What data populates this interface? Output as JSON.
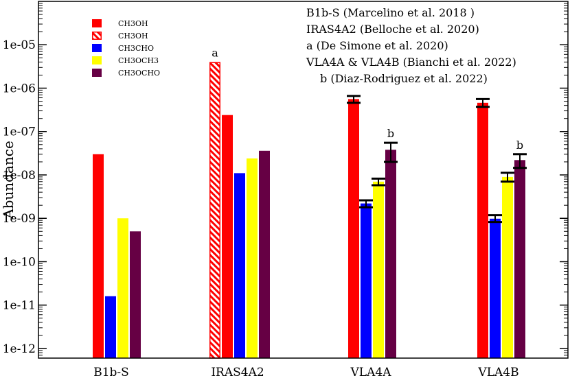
{
  "chart_data": {
    "type": "bar",
    "ylabel": "Abundance",
    "yscale": "log",
    "ylim": [
      6e-13,
      0.0001
    ],
    "yticks": [
      {
        "value": 1e-12,
        "label": "1e-12"
      },
      {
        "value": 1e-11,
        "label": "1e-11"
      },
      {
        "value": 1e-10,
        "label": "1e-10"
      },
      {
        "value": 1e-09,
        "label": "1e-09"
      },
      {
        "value": 1e-08,
        "label": "1e-08"
      },
      {
        "value": 1e-07,
        "label": "1e-07"
      },
      {
        "value": 1e-06,
        "label": "1e-06"
      },
      {
        "value": 1e-05,
        "label": "1e-05"
      }
    ],
    "categories": [
      "B1b-S",
      "IRAS4A2",
      "VLA4A",
      "VLA4B"
    ],
    "series": [
      {
        "name": "CH3OH",
        "color": "#ff0000",
        "hatched": false,
        "values": [
          3e-08,
          2.4e-07,
          5.6e-07,
          4.6e-07
        ],
        "errors": [
          null,
          null,
          [
            4.6e-07,
            6.6e-07
          ],
          [
            3.7e-07,
            5.6e-07
          ]
        ],
        "annotations": [
          null,
          null,
          null,
          null
        ]
      },
      {
        "name": "CH3OH",
        "color": "#ff0000",
        "hatched": true,
        "values": [
          null,
          4e-06,
          null,
          null
        ],
        "errors": [
          null,
          null,
          null,
          null
        ],
        "annotations": [
          null,
          "a",
          null,
          null
        ]
      },
      {
        "name": "CH3CHO",
        "color": "#0000ff",
        "hatched": false,
        "values": [
          1.6e-11,
          1.1e-08,
          2.2e-09,
          9.8e-10
        ],
        "errors": [
          null,
          null,
          [
            1.8e-09,
            2.6e-09
          ],
          [
            8.2e-10,
            1.18e-09
          ]
        ],
        "annotations": [
          null,
          null,
          null,
          null
        ]
      },
      {
        "name": "CH3OCH3",
        "color": "#ffff00",
        "hatched": false,
        "values": [
          1e-09,
          2.4e-08,
          7e-09,
          9e-09
        ],
        "errors": [
          null,
          null,
          [
            5.8e-09,
            8.2e-09
          ],
          [
            7e-09,
            1.12e-08
          ]
        ],
        "annotations": [
          null,
          null,
          null,
          null
        ]
      },
      {
        "name": "CH3OCHO",
        "color": "#660044",
        "hatched": false,
        "values": [
          5e-10,
          3.6e-08,
          3.8e-08,
          2.2e-08
        ],
        "errors": [
          null,
          null,
          [
            2e-08,
            5.5e-08
          ],
          [
            1.45e-08,
            3e-08
          ]
        ],
        "annotations": [
          null,
          null,
          "b",
          "b"
        ]
      }
    ],
    "legend": {
      "position": "top-left",
      "entries": [
        {
          "label": "CH3OH",
          "color": "#ff0000",
          "hatched": false
        },
        {
          "label": "CH3OH",
          "color": "#ff0000",
          "hatched": true
        },
        {
          "label": "CH3CHO",
          "color": "#0000ff",
          "hatched": false
        },
        {
          "label": "CH3OCH3",
          "color": "#ffff00",
          "hatched": false
        },
        {
          "label": "CH3OCHO",
          "color": "#660044",
          "hatched": false
        }
      ]
    },
    "references": [
      "B1b-S (Marcelino et al. 2018 )",
      "IRAS4A2 (Belloche et al. 2020)",
      "a (De Simone et al. 2020)",
      "VLA4A & VLA4B (Bianchi et al. 2022)",
      "b (Diaz-Rodriguez et al. 2022)"
    ]
  }
}
